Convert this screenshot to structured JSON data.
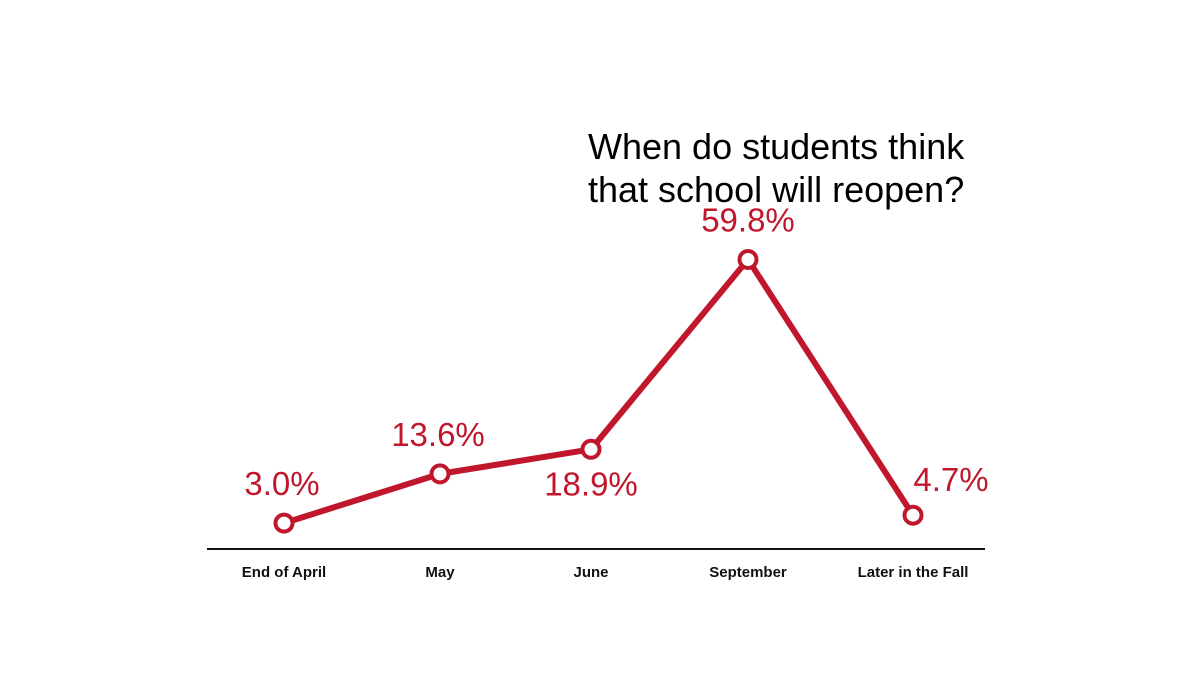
{
  "chart_data": {
    "type": "line",
    "title_lines": [
      "When do students think",
      "that school will reopen?"
    ],
    "categories": [
      "End of April",
      "May",
      "June",
      "September",
      "Later in the Fall"
    ],
    "values": [
      3.0,
      13.6,
      18.9,
      59.8,
      4.7
    ],
    "data_labels": [
      "3.0%",
      "13.6%",
      "18.9%",
      "59.8%",
      "4.7%"
    ],
    "y_unit": "%",
    "ylim": [
      0,
      64
    ],
    "grid": false,
    "legend": "none",
    "colors": {
      "series": "#c0172d",
      "axis": "#111111",
      "title": "#000000"
    }
  }
}
